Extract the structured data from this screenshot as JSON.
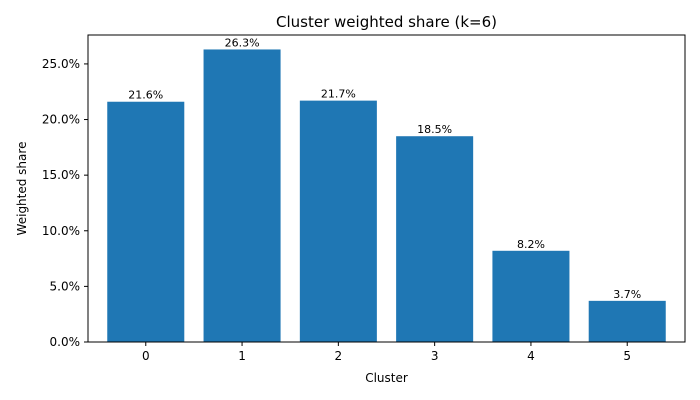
{
  "chart_data": {
    "type": "bar",
    "title": "Cluster weighted share (k=6)",
    "xlabel": "Cluster",
    "ylabel": "Weighted share",
    "categories": [
      "0",
      "1",
      "2",
      "3",
      "4",
      "5"
    ],
    "values": [
      21.6,
      26.3,
      21.7,
      18.5,
      8.2,
      3.7
    ],
    "data_labels": [
      "21.6%",
      "26.3%",
      "21.7%",
      "18.5%",
      "8.2%",
      "3.7%"
    ],
    "ylim": [
      0,
      27.6
    ],
    "yticks": [
      0,
      5,
      10,
      15,
      20,
      25
    ],
    "ytick_labels": [
      "0.0%",
      "5.0%",
      "10.0%",
      "15.0%",
      "20.0%",
      "25.0%"
    ],
    "grid": false,
    "legend": "none",
    "bar_color": "#1f77b4"
  }
}
